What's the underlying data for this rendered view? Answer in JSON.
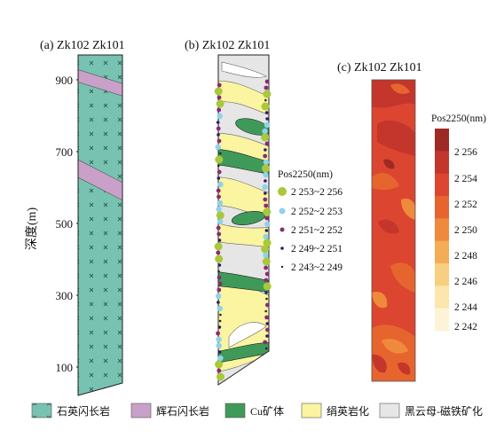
{
  "panels": {
    "a": {
      "label": "(a) Zk102  Zk101"
    },
    "b": {
      "label": "(b) Zk102  Zk101"
    },
    "c": {
      "label": "(c)  Zk102  Zk101"
    }
  },
  "depth_axis": {
    "title": "深度(m)",
    "ticks": [
      "900",
      "700",
      "500",
      "300",
      "100"
    ]
  },
  "pos_legend": {
    "title": "Pos2250(nm)",
    "items": [
      {
        "label": "2 253~2 256",
        "color": "#a9c83a"
      },
      {
        "label": "2 252~2 253",
        "color": "#8fd2ea"
      },
      {
        "label": "2 251~2 252",
        "color": "#8a2b73"
      },
      {
        "label": "2 249~2 251",
        "color": "#2a1f63"
      },
      {
        "label": "2 243~2 249",
        "color": "#222222"
      }
    ]
  },
  "colorbar": {
    "title": "Pos2250(nm)",
    "labels": [
      "2 256",
      "2 254",
      "2 252",
      "2 250",
      "2 248",
      "2 246",
      "2 244",
      "2 242"
    ],
    "colors": [
      "#9e2a25",
      "#c4362b",
      "#dc4530",
      "#e6652f",
      "#ef8a3c",
      "#f4ad56",
      "#f8cf80",
      "#fbe6ab",
      "#fdf4d8"
    ]
  },
  "lithology_legend": [
    {
      "label": "石英闪长岩",
      "color": "#78c2b1",
      "pattern": "cross"
    },
    {
      "label": "辉石闪长岩",
      "color": "#c9a0c8",
      "pattern": "none"
    },
    {
      "label": "Cu矿体",
      "color": "#3f9a5a",
      "pattern": "none"
    },
    {
      "label": "绢英岩化",
      "color": "#fbf4a0",
      "pattern": "none"
    },
    {
      "label": "黑云母-磁铁矿化",
      "color": "#e6e6e6",
      "pattern": "none"
    }
  ]
}
